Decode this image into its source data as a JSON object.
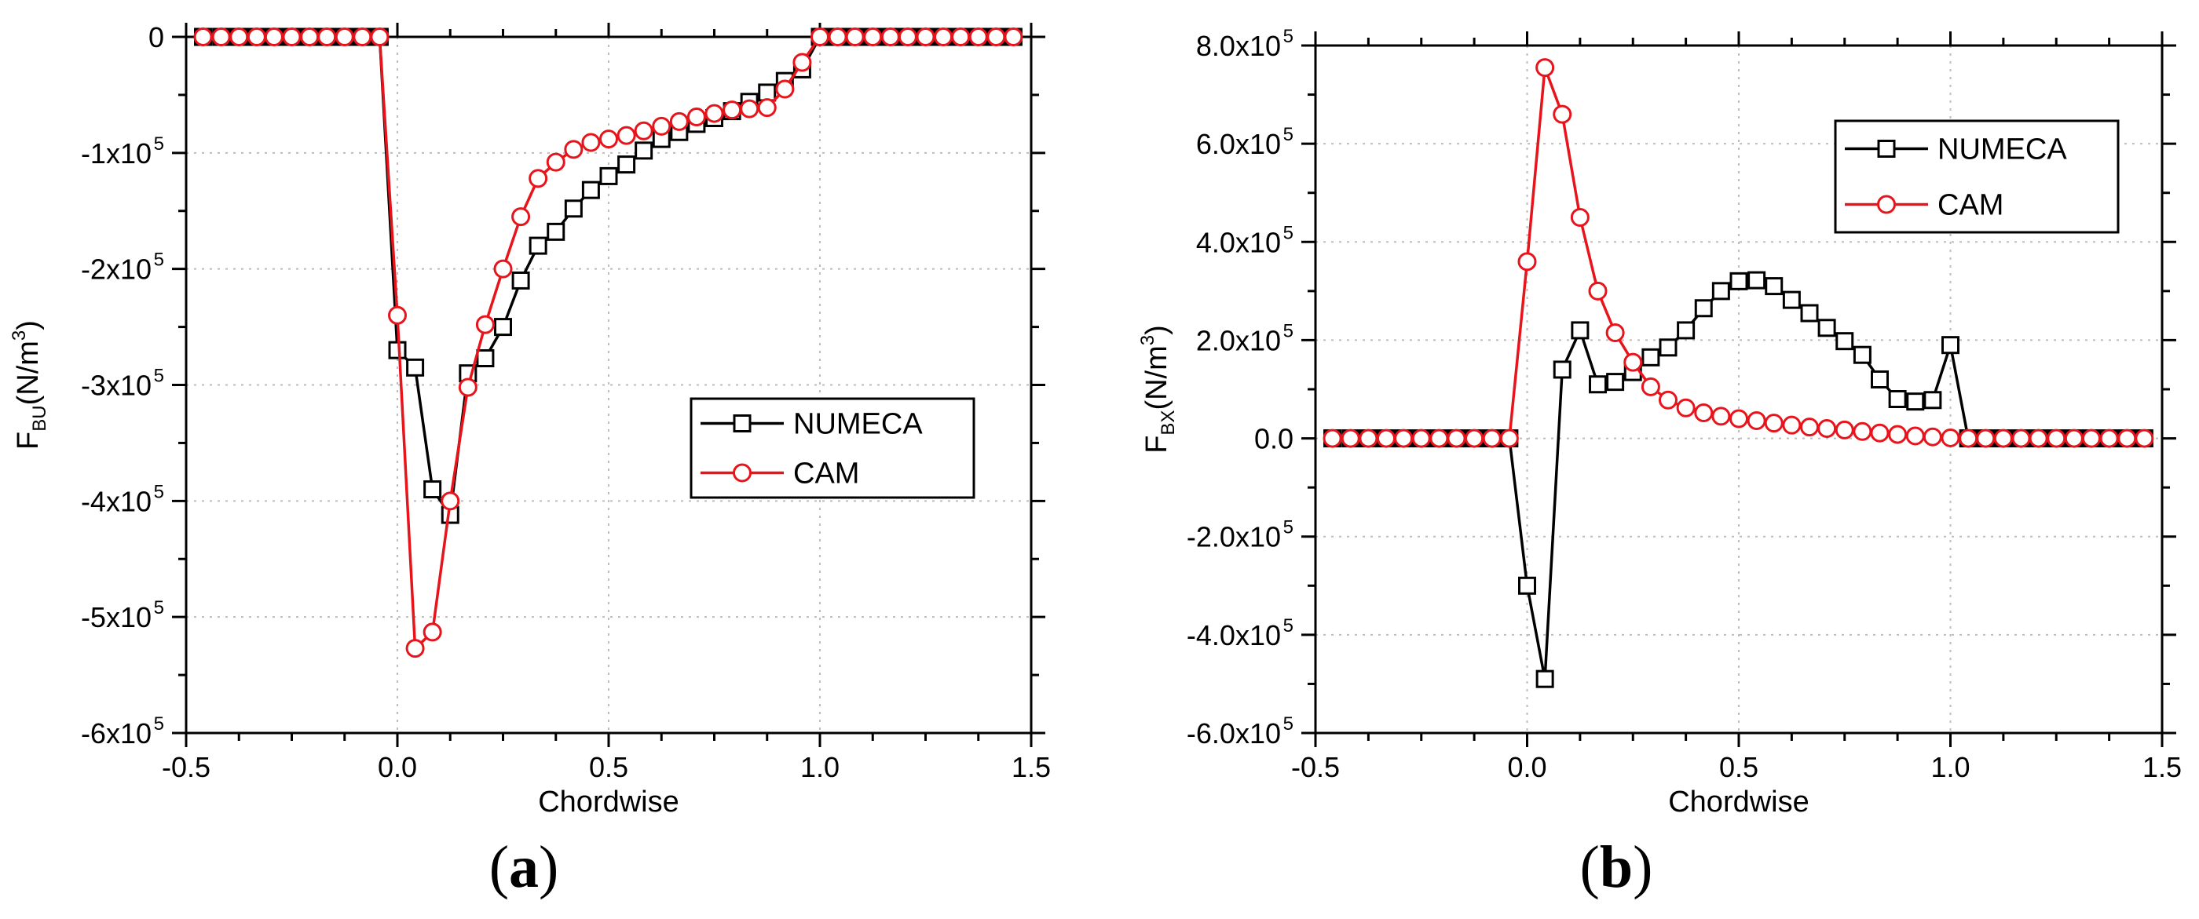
{
  "colors": {
    "numeca": "#000000",
    "cam": "#e8141b",
    "grid": "#bdbdbd"
  },
  "chart_data": [
    {
      "type": "line",
      "panel_label": "a",
      "xlabel": "Chordwise",
      "ylabel_main": "F",
      "ylabel_sub": "BU",
      "ylabel_unit": "(N/m",
      "ylabel_exp": "3",
      "ylabel_close": ")",
      "xlim": [
        -0.5,
        1.5
      ],
      "ylim": [
        -600000,
        0
      ],
      "xticks": [
        {
          "value": -0.5,
          "label": "-0.5"
        },
        {
          "value": 0.0,
          "label": "0.0"
        },
        {
          "value": 0.5,
          "label": "0.5"
        },
        {
          "value": 1.0,
          "label": "1.0"
        },
        {
          "value": 1.5,
          "label": "1.5"
        }
      ],
      "yticks": [
        {
          "value": 0,
          "mant": "0",
          "exp": ""
        },
        {
          "value": -100000,
          "mant": "-1x10",
          "exp": "5"
        },
        {
          "value": -200000,
          "mant": "-2x10",
          "exp": "5"
        },
        {
          "value": -300000,
          "mant": "-3x10",
          "exp": "5"
        },
        {
          "value": -400000,
          "mant": "-4x10",
          "exp": "5"
        },
        {
          "value": -500000,
          "mant": "-5x10",
          "exp": "5"
        },
        {
          "value": -600000,
          "mant": "-6x10",
          "exp": "5"
        }
      ],
      "grid": true,
      "legend": {
        "position": "lower-right"
      },
      "series": [
        {
          "name": "NUMECA",
          "marker": "square",
          "color": "#000000",
          "x": [
            -0.46,
            -0.417,
            -0.375,
            -0.333,
            -0.292,
            -0.25,
            -0.208,
            -0.167,
            -0.125,
            -0.083,
            -0.042,
            0.0,
            0.042,
            0.083,
            0.125,
            0.167,
            0.208,
            0.25,
            0.292,
            0.333,
            0.375,
            0.417,
            0.458,
            0.5,
            0.542,
            0.583,
            0.625,
            0.667,
            0.708,
            0.75,
            0.792,
            0.833,
            0.875,
            0.917,
            0.958,
            1.0,
            1.042,
            1.083,
            1.125,
            1.167,
            1.208,
            1.25,
            1.292,
            1.333,
            1.375,
            1.417,
            1.458
          ],
          "y": [
            0,
            0,
            0,
            0,
            0,
            0,
            0,
            0,
            0,
            0,
            0,
            -270000,
            -285000,
            -390000,
            -412000,
            -290000,
            -277000,
            -250000,
            -210000,
            -180000,
            -168000,
            -148000,
            -132000,
            -120000,
            -110000,
            -98000,
            -88000,
            -82000,
            -75000,
            -70000,
            -64000,
            -56000,
            -48000,
            -38000,
            -28000,
            0,
            0,
            0,
            0,
            0,
            0,
            0,
            0,
            0,
            0,
            0,
            0
          ]
        },
        {
          "name": "CAM",
          "marker": "circle",
          "color": "#e8141b",
          "x": [
            -0.46,
            -0.417,
            -0.375,
            -0.333,
            -0.292,
            -0.25,
            -0.208,
            -0.167,
            -0.125,
            -0.083,
            -0.042,
            0.0,
            0.042,
            0.083,
            0.125,
            0.167,
            0.208,
            0.25,
            0.292,
            0.333,
            0.375,
            0.417,
            0.458,
            0.5,
            0.542,
            0.583,
            0.625,
            0.667,
            0.708,
            0.75,
            0.792,
            0.833,
            0.875,
            0.917,
            0.958,
            1.0,
            1.042,
            1.083,
            1.125,
            1.167,
            1.208,
            1.25,
            1.292,
            1.333,
            1.375,
            1.417,
            1.458
          ],
          "y": [
            0,
            0,
            0,
            0,
            0,
            0,
            0,
            0,
            0,
            0,
            0,
            -240000,
            -527000,
            -513000,
            -400000,
            -302000,
            -248000,
            -200000,
            -155000,
            -122000,
            -108000,
            -97000,
            -91000,
            -88000,
            -85000,
            -81000,
            -77000,
            -73000,
            -69000,
            -66000,
            -63000,
            -62000,
            -61000,
            -45000,
            -22000,
            0,
            0,
            0,
            0,
            0,
            0,
            0,
            0,
            0,
            0,
            0,
            0
          ]
        }
      ]
    },
    {
      "type": "line",
      "panel_label": "b",
      "xlabel": "Chordwise",
      "ylabel_main": "F",
      "ylabel_sub": "BX",
      "ylabel_unit": "(N/m",
      "ylabel_exp": "3",
      "ylabel_close": ")",
      "xlim": [
        -0.5,
        1.5
      ],
      "ylim": [
        -600000,
        800000
      ],
      "xticks": [
        {
          "value": -0.5,
          "label": "-0.5"
        },
        {
          "value": 0.0,
          "label": "0.0"
        },
        {
          "value": 0.5,
          "label": "0.5"
        },
        {
          "value": 1.0,
          "label": "1.0"
        },
        {
          "value": 1.5,
          "label": "1.5"
        }
      ],
      "yticks": [
        {
          "value": 800000,
          "mant": "8.0x10",
          "exp": "5"
        },
        {
          "value": 600000,
          "mant": "6.0x10",
          "exp": "5"
        },
        {
          "value": 400000,
          "mant": "4.0x10",
          "exp": "5"
        },
        {
          "value": 200000,
          "mant": "2.0x10",
          "exp": "5"
        },
        {
          "value": 0,
          "mant": "0.0",
          "exp": ""
        },
        {
          "value": -200000,
          "mant": "-2.0x10",
          "exp": "5"
        },
        {
          "value": -400000,
          "mant": "-4.0x10",
          "exp": "5"
        },
        {
          "value": -600000,
          "mant": "-6.0x10",
          "exp": "5"
        }
      ],
      "grid": true,
      "legend": {
        "position": "upper-right"
      },
      "series": [
        {
          "name": "NUMECA",
          "marker": "square",
          "color": "#000000",
          "x": [
            -0.46,
            -0.417,
            -0.375,
            -0.333,
            -0.292,
            -0.25,
            -0.208,
            -0.167,
            -0.125,
            -0.083,
            -0.042,
            0.0,
            0.042,
            0.083,
            0.125,
            0.167,
            0.208,
            0.25,
            0.292,
            0.333,
            0.375,
            0.417,
            0.458,
            0.5,
            0.542,
            0.583,
            0.625,
            0.667,
            0.708,
            0.75,
            0.792,
            0.833,
            0.875,
            0.917,
            0.958,
            1.0,
            1.042,
            1.083,
            1.125,
            1.167,
            1.208,
            1.25,
            1.292,
            1.333,
            1.375,
            1.417,
            1.458
          ],
          "y": [
            0,
            0,
            0,
            0,
            0,
            0,
            0,
            0,
            0,
            0,
            0,
            -300000,
            -490000,
            140000,
            220000,
            110000,
            115000,
            135000,
            165000,
            185000,
            220000,
            265000,
            300000,
            320000,
            322000,
            310000,
            282000,
            255000,
            225000,
            198000,
            170000,
            120000,
            80000,
            75000,
            78000,
            190000,
            0,
            0,
            0,
            0,
            0,
            0,
            0,
            0,
            0,
            0,
            0
          ]
        },
        {
          "name": "CAM",
          "marker": "circle",
          "color": "#e8141b",
          "x": [
            -0.46,
            -0.417,
            -0.375,
            -0.333,
            -0.292,
            -0.25,
            -0.208,
            -0.167,
            -0.125,
            -0.083,
            -0.042,
            0.0,
            0.042,
            0.083,
            0.125,
            0.167,
            0.208,
            0.25,
            0.292,
            0.333,
            0.375,
            0.417,
            0.458,
            0.5,
            0.542,
            0.583,
            0.625,
            0.667,
            0.708,
            0.75,
            0.792,
            0.833,
            0.875,
            0.917,
            0.958,
            1.0,
            1.042,
            1.083,
            1.125,
            1.167,
            1.208,
            1.25,
            1.292,
            1.333,
            1.375,
            1.417,
            1.458
          ],
          "y": [
            0,
            0,
            0,
            0,
            0,
            0,
            0,
            0,
            0,
            0,
            0,
            360000,
            755000,
            660000,
            450000,
            300000,
            215000,
            155000,
            105000,
            78000,
            62000,
            52000,
            45000,
            40000,
            36000,
            31000,
            27000,
            23000,
            20000,
            17000,
            14000,
            11000,
            8000,
            5000,
            3000,
            1000,
            0,
            0,
            0,
            0,
            0,
            0,
            0,
            0,
            0,
            0,
            0
          ]
        }
      ]
    }
  ]
}
